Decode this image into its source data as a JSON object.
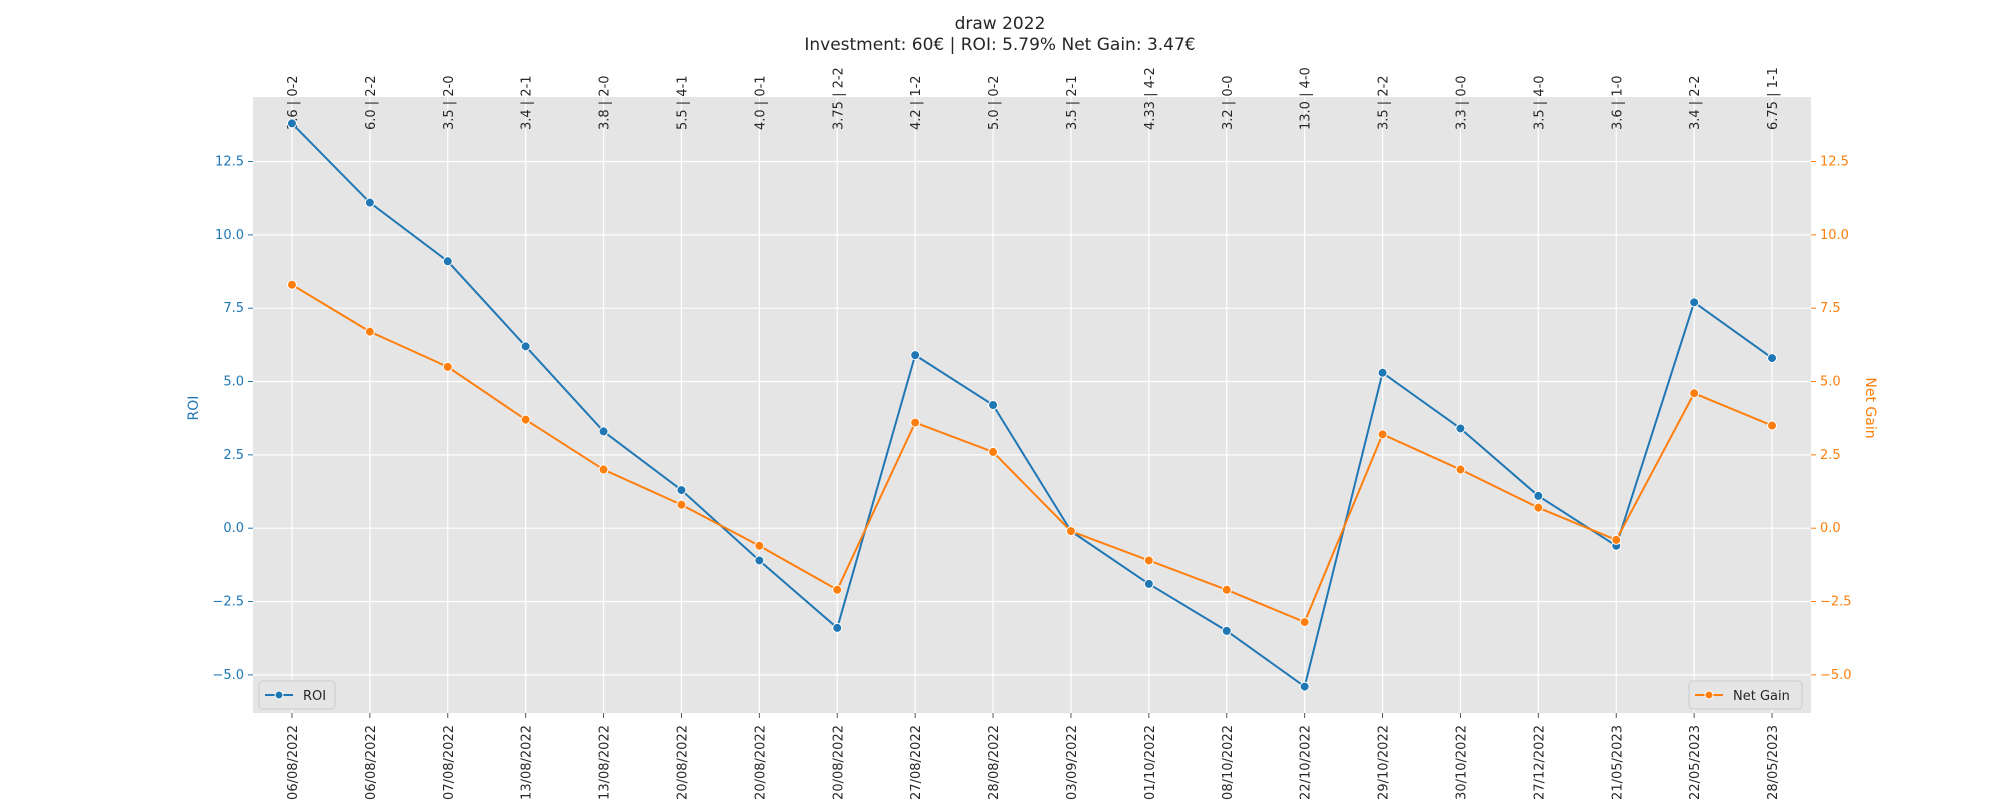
{
  "chart_data": {
    "type": "line",
    "title": "draw 2022",
    "subtitle": "Investment: 60€ | ROI: 5.79% Net Gain: 3.47€",
    "x": [
      "06/08/2022",
      "06/08/2022",
      "07/08/2022",
      "13/08/2022",
      "13/08/2022",
      "20/08/2022",
      "20/08/2022",
      "20/08/2022",
      "27/08/2022",
      "28/08/2022",
      "03/09/2022",
      "01/10/2022",
      "08/10/2022",
      "22/10/2022",
      "29/10/2022",
      "30/10/2022",
      "27/12/2022",
      "21/05/2023",
      "22/05/2023",
      "28/05/2023"
    ],
    "top_labels": [
      "3.6 | 0-2",
      "6.0 | 2-2",
      "3.5 | 2-0",
      "3.4 | 2-1",
      "3.8 | 2-0",
      "5.5 | 4-1",
      "4.0 | 0-1",
      "3.75 | 2-2",
      "4.2 | 1-2",
      "5.0 | 0-2",
      "3.5 | 2-1",
      "4.33 | 4-2",
      "3.2 | 0-0",
      "13.0 | 4-0",
      "3.5 | 2-2",
      "3.3 | 0-0",
      "3.5 | 4-0",
      "3.6 | 1-0",
      "3.4 | 2-2",
      "6.75 | 1-1"
    ],
    "series": [
      {
        "name": "ROI",
        "axis": "left",
        "color": "#1f77b4",
        "values": [
          13.8,
          11.1,
          9.1,
          6.2,
          3.3,
          1.3,
          -1.1,
          -3.4,
          5.9,
          4.2,
          -0.1,
          -1.9,
          -3.5,
          -5.4,
          5.3,
          3.4,
          1.1,
          -0.6,
          7.7,
          5.8
        ]
      },
      {
        "name": "Net Gain",
        "axis": "right",
        "color": "#ff7f0e",
        "values": [
          8.3,
          6.7,
          5.5,
          3.7,
          2.0,
          0.8,
          -0.6,
          -2.1,
          3.6,
          2.6,
          -0.1,
          -1.1,
          -2.1,
          -3.2,
          3.2,
          2.0,
          0.7,
          -0.4,
          4.6,
          3.5
        ]
      }
    ],
    "ylabel_left": "ROI",
    "ylabel_right": "Net Gain",
    "ylim": [
      -6.3,
      14.7
    ],
    "yticks": [
      -5.0,
      -2.5,
      0.0,
      2.5,
      5.0,
      7.5,
      10.0,
      12.5
    ],
    "ytick_labels": [
      "−5.0",
      "−2.5",
      "0.0",
      "2.5",
      "5.0",
      "7.5",
      "10.0",
      "12.5"
    ],
    "grid": true,
    "legend": [
      {
        "name": "ROI",
        "placement": "bottom-left"
      },
      {
        "name": "Net Gain",
        "placement": "bottom-right"
      }
    ],
    "background_color": "#e5e5e5"
  }
}
